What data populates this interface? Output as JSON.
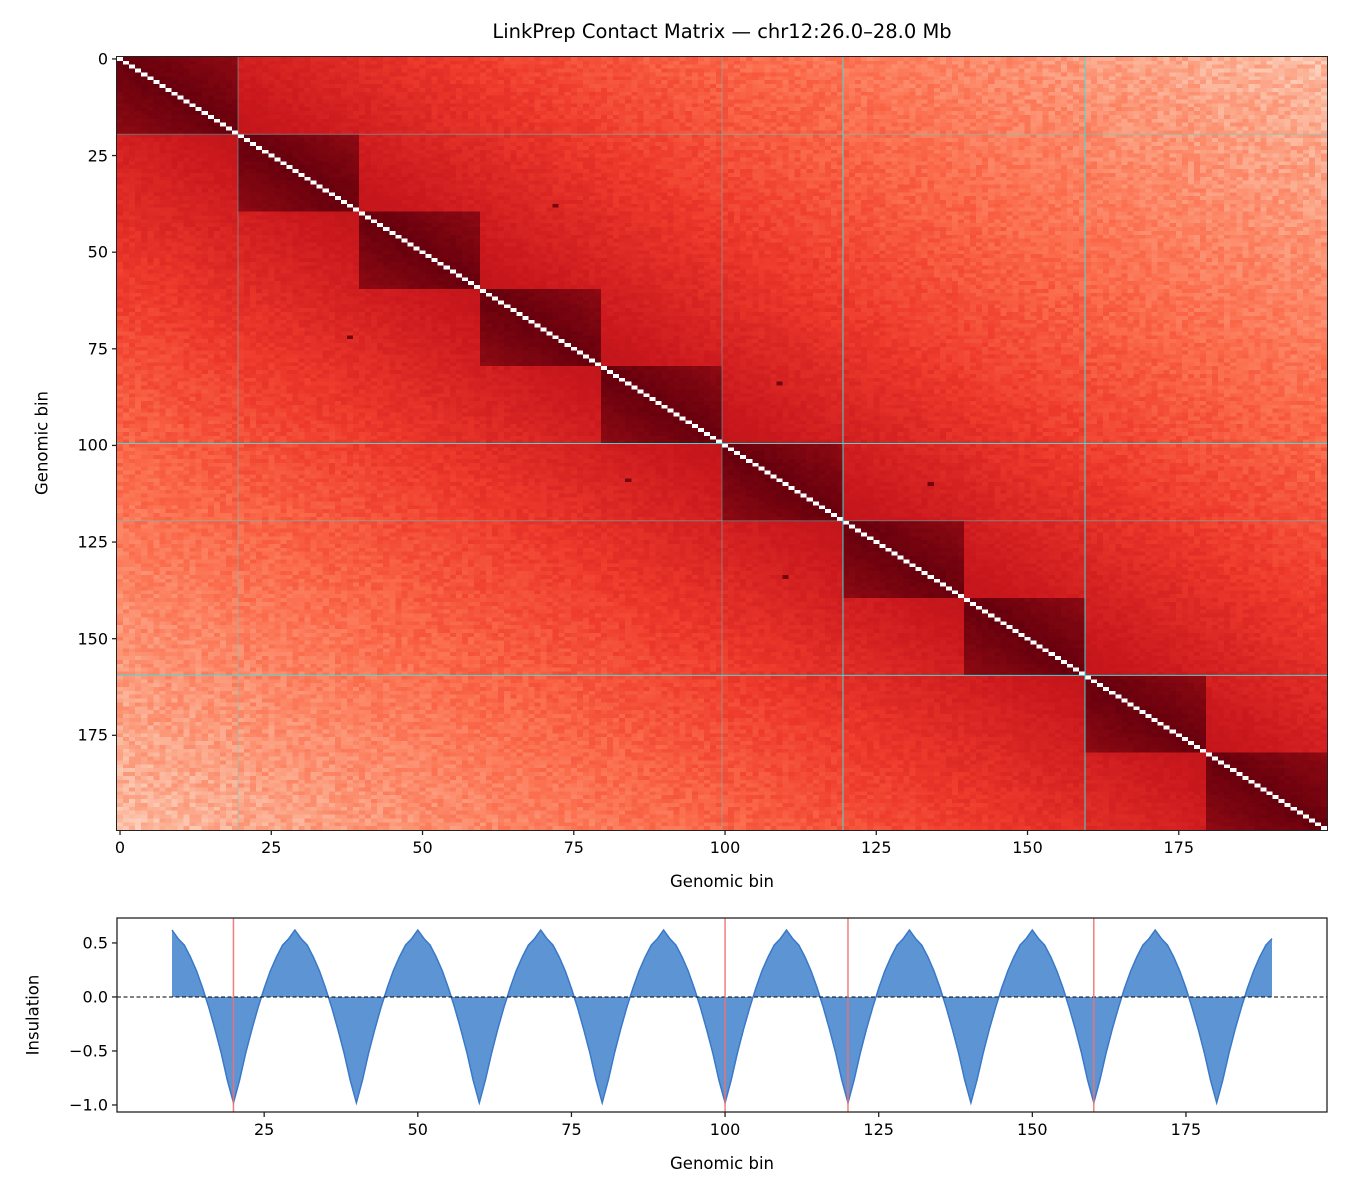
{
  "title": "LinkPrep Contact Matrix — chr12:26.0–28.0 Mb",
  "chart_data": [
    {
      "type": "heatmap",
      "title": "LinkPrep Contact Matrix — chr12:26.0–28.0 Mb",
      "xlabel": "Genomic bin",
      "ylabel": "Genomic bin",
      "n_bins": 200,
      "colormap": "Reds",
      "xticks": [
        0,
        25,
        50,
        75,
        100,
        125,
        150,
        175
      ],
      "yticks": [
        0,
        25,
        50,
        75,
        100,
        125,
        150,
        175
      ],
      "xlim": [
        -0.5,
        199.5
      ],
      "ylim": [
        199.5,
        -0.5
      ],
      "domain_boundaries": [
        0,
        20,
        40,
        60,
        80,
        100,
        120,
        140,
        160,
        180,
        200
      ],
      "loops": [
        [
          38,
          72
        ],
        [
          84,
          109
        ],
        [
          110,
          134
        ]
      ],
      "highlight_lines": {
        "color": "#40e0e0",
        "vertical": [
          20,
          100,
          120,
          160
        ],
        "horizontal": [
          20,
          100,
          120,
          160
        ]
      },
      "diagonal_color": "#ffffff",
      "grid": false
    },
    {
      "type": "area",
      "xlabel": "Genomic bin",
      "ylabel": "Insulation",
      "xlim": [
        1.05,
        197.95
      ],
      "ylim": [
        -1.065,
        0.731
      ],
      "xticks": [
        25,
        50,
        75,
        100,
        125,
        150,
        175
      ],
      "yticks": [
        0.5,
        0.0,
        -0.5,
        -1.0
      ],
      "ytick_labels": [
        "0.5",
        "0.0",
        "−0.5",
        "−1.0"
      ],
      "x_start": 10,
      "x_end": 189,
      "values": [
        0.62,
        0.54,
        0.48,
        0.37,
        0.24,
        0.08,
        -0.1,
        -0.3,
        -0.52,
        -0.77,
        -0.98,
        -0.77,
        -0.52,
        -0.3,
        -0.1,
        0.08,
        0.24,
        0.37,
        0.48,
        0.54,
        0.62,
        0.54,
        0.48,
        0.37,
        0.24,
        0.08,
        -0.1,
        -0.3,
        -0.52,
        -0.77,
        -0.98,
        -0.77,
        -0.52,
        -0.3,
        -0.1,
        0.08,
        0.24,
        0.37,
        0.48,
        0.54,
        0.62,
        0.54,
        0.48,
        0.37,
        0.24,
        0.08,
        -0.1,
        -0.3,
        -0.52,
        -0.77,
        -0.98,
        -0.77,
        -0.52,
        -0.3,
        -0.1,
        0.08,
        0.24,
        0.37,
        0.48,
        0.54,
        0.62,
        0.54,
        0.48,
        0.37,
        0.24,
        0.08,
        -0.1,
        -0.3,
        -0.52,
        -0.77,
        -0.98,
        -0.77,
        -0.52,
        -0.3,
        -0.1,
        0.08,
        0.24,
        0.37,
        0.48,
        0.54,
        0.62,
        0.54,
        0.48,
        0.37,
        0.24,
        0.08,
        -0.1,
        -0.3,
        -0.52,
        -0.77,
        -0.98,
        -0.77,
        -0.52,
        -0.3,
        -0.1,
        0.08,
        0.24,
        0.37,
        0.48,
        0.54,
        0.62,
        0.54,
        0.48,
        0.37,
        0.24,
        0.08,
        -0.1,
        -0.3,
        -0.52,
        -0.77,
        -0.98,
        -0.77,
        -0.52,
        -0.3,
        -0.1,
        0.08,
        0.24,
        0.37,
        0.48,
        0.54,
        0.62,
        0.54,
        0.48,
        0.37,
        0.24,
        0.08,
        -0.1,
        -0.3,
        -0.52,
        -0.77,
        -0.98,
        -0.77,
        -0.52,
        -0.3,
        -0.1,
        0.08,
        0.24,
        0.37,
        0.48,
        0.54,
        0.62,
        0.54,
        0.48,
        0.37,
        0.24,
        0.08,
        -0.1,
        -0.3,
        -0.52,
        -0.77,
        -0.98,
        -0.77,
        -0.52,
        -0.3,
        -0.1,
        0.08,
        0.24,
        0.37,
        0.48,
        0.54,
        0.62,
        0.54,
        0.48,
        0.37,
        0.24,
        0.08,
        -0.1,
        -0.3,
        -0.52,
        -0.77,
        -0.98,
        -0.77,
        -0.52,
        -0.3,
        -0.1,
        0.08,
        0.24,
        0.37,
        0.48,
        0.54
      ],
      "fill_color": "#5a93d3",
      "line_color": "#3a78c8",
      "zero_line": 0,
      "boundary_lines": {
        "color": "#f07070",
        "x": [
          20,
          100,
          120,
          160
        ]
      },
      "grid": false
    }
  ]
}
